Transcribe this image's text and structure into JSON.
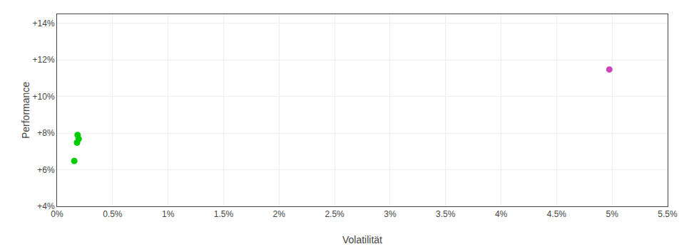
{
  "chart_data": {
    "type": "scatter",
    "xlabel": "Volatilität",
    "ylabel": "Performance",
    "xlim": [
      0.0,
      0.055
    ],
    "ylim": [
      0.04,
      0.145
    ],
    "xticks": [
      {
        "value": 0.0,
        "label": "0%"
      },
      {
        "value": 0.005,
        "label": "0.5%"
      },
      {
        "value": 0.01,
        "label": "1%"
      },
      {
        "value": 0.015,
        "label": "1.5%"
      },
      {
        "value": 0.02,
        "label": "2%"
      },
      {
        "value": 0.025,
        "label": "2.5%"
      },
      {
        "value": 0.03,
        "label": "3%"
      },
      {
        "value": 0.035,
        "label": "3.5%"
      },
      {
        "value": 0.04,
        "label": "4%"
      },
      {
        "value": 0.045,
        "label": "4.5%"
      },
      {
        "value": 0.05,
        "label": "5%"
      },
      {
        "value": 0.055,
        "label": "5.5%"
      }
    ],
    "yticks": [
      {
        "value": 0.04,
        "label": "+4%"
      },
      {
        "value": 0.06,
        "label": "+6%"
      },
      {
        "value": 0.08,
        "label": "+8%"
      },
      {
        "value": 0.1,
        "label": "+10%"
      },
      {
        "value": 0.12,
        "label": "+12%"
      },
      {
        "value": 0.14,
        "label": "+14%"
      }
    ],
    "grid": true,
    "series": [
      {
        "color": "#00cc00",
        "x": [
          0.00185,
          0.00195,
          0.0018,
          0.00155
        ],
        "values": [
          0.079,
          0.0768,
          0.0748,
          0.0648
        ]
      },
      {
        "color": "#cc44bb",
        "x": [
          0.04975
        ],
        "values": [
          0.1148
        ]
      }
    ]
  }
}
